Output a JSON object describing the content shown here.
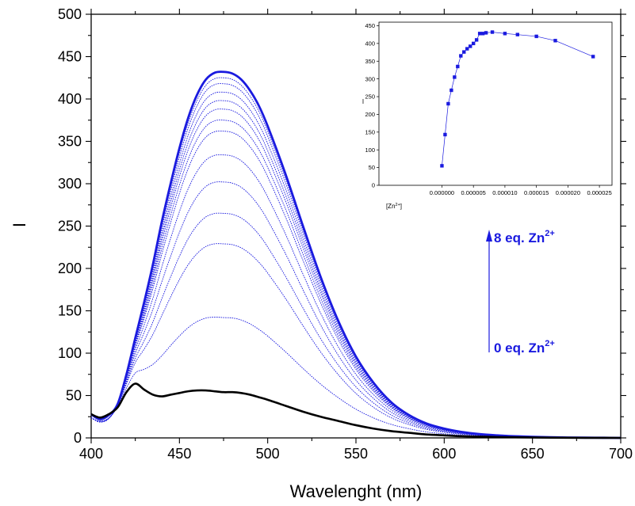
{
  "chart_data": [
    {
      "type": "line",
      "xlabel": "Wavelenght (nm)",
      "ylabel": "I",
      "xlim": [
        400,
        700
      ],
      "ylim": [
        0,
        500
      ],
      "xticks": [
        "400",
        "450",
        "500",
        "550",
        "600",
        "650",
        "700"
      ],
      "yticks": [
        "0",
        "50",
        "100",
        "150",
        "200",
        "250",
        "300",
        "350",
        "400",
        "450",
        "500"
      ],
      "series_colors": {
        "initial": "#000000",
        "titration": "#1a1adf",
        "final": "#1a1adf"
      },
      "x": [
        400,
        405,
        410,
        415,
        420,
        425,
        430,
        435,
        440,
        445,
        450,
        455,
        460,
        465,
        470,
        475,
        480,
        485,
        490,
        495,
        500,
        510,
        520,
        530,
        540,
        550,
        560,
        570,
        580,
        590,
        600,
        610,
        620,
        630,
        640,
        650,
        660,
        670,
        680,
        690,
        700
      ],
      "series": [
        {
          "role": "initial",
          "values": [
            28,
            24,
            28,
            36,
            54,
            64,
            57,
            51,
            49,
            51,
            53,
            55,
            56,
            56,
            55,
            54,
            54,
            53,
            51,
            48,
            45,
            38,
            31,
            25,
            20,
            15,
            11,
            8,
            6,
            4,
            3,
            2,
            1.5,
            1,
            0.8,
            0.5,
            0.3,
            0.2,
            0.1,
            0.1,
            0
          ]
        },
        {
          "role": "titration",
          "peak": 142
        },
        {
          "role": "titration",
          "peak": 229
        },
        {
          "role": "titration",
          "peak": 265
        },
        {
          "role": "titration",
          "peak": 302
        },
        {
          "role": "titration",
          "peak": 334
        },
        {
          "role": "titration",
          "peak": 362
        },
        {
          "role": "titration",
          "peak": 375
        },
        {
          "role": "titration",
          "peak": 388
        },
        {
          "role": "titration",
          "peak": 398
        },
        {
          "role": "titration",
          "peak": 408
        },
        {
          "role": "titration",
          "peak": 418
        },
        {
          "role": "titration",
          "peak": 425
        },
        {
          "role": "final",
          "peak": 432,
          "values": [
            28,
            22,
            27,
            40,
            75,
            118,
            160,
            205,
            255,
            300,
            342,
            378,
            405,
            423,
            431,
            432,
            430,
            423,
            410,
            392,
            368,
            312,
            250,
            190,
            138,
            96,
            65,
            42,
            27,
            17,
            11,
            7,
            4.5,
            3,
            2,
            1.3,
            0.8,
            0.5,
            0.3,
            0.2,
            0
          ]
        }
      ],
      "annotations": {
        "top_text": "8 eq. Zn",
        "top_sup": "2+",
        "bottom_text": "0 eq. Zn",
        "bottom_sup": "2+"
      }
    },
    {
      "type": "scatter",
      "xlabel": "[Zn",
      "xlabel_sup": "2+",
      "xlabel_end": "]",
      "ylabel": "I",
      "xlim": [
        -1e-05,
        2.7e-05
      ],
      "ylim": [
        0,
        460
      ],
      "xtick_values": [
        0,
        5e-06,
        1e-05,
        1.5e-05,
        2e-05,
        2.5e-05
      ],
      "xticks": [
        "0.000000",
        "0.000005",
        "0.000010",
        "0.000015",
        "0.000020",
        "0.000025"
      ],
      "ytick_values": [
        0,
        50,
        100,
        150,
        200,
        250,
        300,
        350,
        400,
        450
      ],
      "yticks": [
        "0",
        "50",
        "100",
        "150",
        "200",
        "250",
        "300",
        "350",
        "400",
        "450"
      ],
      "color": "#1a1adf",
      "x": [
        0,
        5e-07,
        1e-06,
        1.5e-06,
        2e-06,
        2.5e-06,
        3e-06,
        3.5e-06,
        4e-06,
        4.5e-06,
        5e-06,
        5.5e-06,
        6e-06,
        6.5e-06,
        7e-06,
        8e-06,
        1e-05,
        1.2e-05,
        1.5e-05,
        1.8e-05,
        2.4e-05
      ],
      "y": [
        55,
        143,
        230,
        268,
        305,
        335,
        365,
        376,
        385,
        392,
        400,
        410,
        428,
        428,
        430,
        432,
        428,
        425,
        420,
        408,
        363
      ]
    }
  ]
}
